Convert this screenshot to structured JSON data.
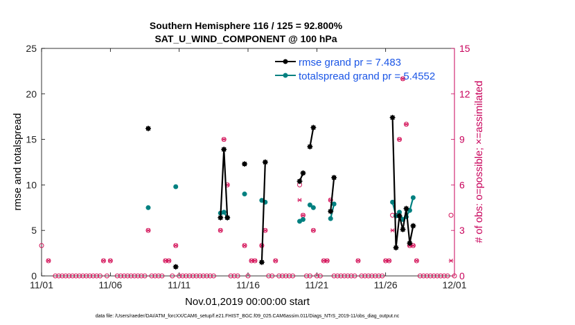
{
  "chart_data": {
    "type": "line",
    "title": "Southern Hemisphere 116 / 125 = 92.800%",
    "subtitle": "SAT_U_WIND_COMPONENT @ 100 hPa",
    "xlabel": "Nov.01,2019 00:00:00 start",
    "ylabel": "rmse and totalspread",
    "y2label": "# of obs: o=possible; ×=assimilated",
    "footnote": "data file: /Users/raeder/DAI/ATM_forcXX/CAM6_setup/f.e21.FHIST_BGC.f09_025.CAM6assim.011/Diags_NTrS_2019-11/obs_diag_output.nc",
    "xlim": [
      1,
      31
    ],
    "ylim": [
      0,
      25
    ],
    "y2lim": [
      0,
      15
    ],
    "xticks": [
      {
        "day": 1,
        "label": "11/01"
      },
      {
        "day": 6,
        "label": "11/06"
      },
      {
        "day": 11,
        "label": "11/11"
      },
      {
        "day": 16,
        "label": "11/16"
      },
      {
        "day": 21,
        "label": "11/21"
      },
      {
        "day": 26,
        "label": "11/26"
      },
      {
        "day": 31,
        "label": "12/01"
      }
    ],
    "yticks": [
      "0",
      "5",
      "10",
      "15",
      "20",
      "25"
    ],
    "y2ticks": [
      "0",
      "3",
      "6",
      "9",
      "12",
      "15"
    ],
    "legend": {
      "position": "top-right",
      "entries": [
        "rmse grand pr = 7.483",
        "totalspread grand pr = 5.4552"
      ]
    },
    "series": [
      {
        "name": "rmse",
        "color": "#000000",
        "segments": [
          [
            [
              8.75,
              16.2
            ]
          ],
          [
            [
              10.75,
              1.0
            ]
          ],
          [
            [
              14.0,
              6.4
            ],
            [
              14.25,
              13.9
            ],
            [
              14.5,
              6.4
            ]
          ],
          [
            [
              15.75,
              12.3
            ]
          ],
          [
            [
              17.0,
              1.5
            ],
            [
              17.25,
              12.5
            ]
          ],
          [
            [
              19.75,
              10.4
            ],
            [
              20.0,
              11.3
            ]
          ],
          [
            [
              20.5,
              14.2
            ],
            [
              20.75,
              16.3
            ]
          ],
          [
            [
              22.0,
              7.1
            ],
            [
              22.25,
              10.8
            ]
          ],
          [
            [
              26.5,
              17.4
            ],
            [
              26.75,
              3.1
            ],
            [
              27.0,
              6.6
            ],
            [
              27.25,
              5.1
            ],
            [
              27.5,
              7.4
            ],
            [
              27.75,
              3.6
            ],
            [
              28.0,
              5.5
            ]
          ]
        ]
      },
      {
        "name": "totalspread",
        "color": "#008080",
        "segments": [
          [
            [
              8.75,
              7.5
            ]
          ],
          [
            [
              10.75,
              9.8
            ]
          ],
          [
            [
              14.0,
              6.9
            ],
            [
              14.25,
              7.0
            ],
            [
              14.5,
              6.4
            ]
          ],
          [
            [
              15.75,
              9.0
            ]
          ],
          [
            [
              17.0,
              8.3
            ],
            [
              17.25,
              8.1
            ]
          ],
          [
            [
              19.75,
              6.0
            ],
            [
              20.0,
              6.2
            ]
          ],
          [
            [
              20.5,
              7.8
            ],
            [
              20.75,
              7.5
            ]
          ],
          [
            [
              22.0,
              6.3
            ],
            [
              22.25,
              7.9
            ]
          ],
          [
            [
              26.5,
              8.1
            ],
            [
              26.75,
              6.6
            ],
            [
              27.0,
              7.0
            ],
            [
              27.25,
              6.2
            ],
            [
              27.5,
              6.5
            ],
            [
              27.75,
              7.2
            ],
            [
              28.0,
              8.6
            ]
          ]
        ]
      }
    ],
    "obs_possible": [
      [
        1.0,
        2
      ],
      [
        1.5,
        1
      ],
      [
        2.0,
        0
      ],
      [
        2.25,
        0
      ],
      [
        2.5,
        0
      ],
      [
        2.75,
        0
      ],
      [
        3.0,
        0
      ],
      [
        3.25,
        0
      ],
      [
        3.5,
        0
      ],
      [
        3.75,
        0
      ],
      [
        4.0,
        0
      ],
      [
        4.25,
        0
      ],
      [
        4.5,
        0
      ],
      [
        4.75,
        0
      ],
      [
        5.0,
        0
      ],
      [
        5.25,
        0
      ],
      [
        5.5,
        1
      ],
      [
        5.75,
        0
      ],
      [
        6.0,
        1
      ],
      [
        6.5,
        0
      ],
      [
        6.75,
        0
      ],
      [
        7.0,
        0
      ],
      [
        7.25,
        0
      ],
      [
        7.5,
        0
      ],
      [
        7.75,
        0
      ],
      [
        8.0,
        0
      ],
      [
        8.25,
        0
      ],
      [
        8.5,
        0
      ],
      [
        8.75,
        3
      ],
      [
        9.0,
        0
      ],
      [
        9.25,
        0
      ],
      [
        9.5,
        0
      ],
      [
        9.75,
        0
      ],
      [
        10.0,
        1
      ],
      [
        10.25,
        1
      ],
      [
        10.5,
        0
      ],
      [
        10.75,
        2
      ],
      [
        11.0,
        0
      ],
      [
        11.25,
        0
      ],
      [
        11.5,
        0
      ],
      [
        11.75,
        0
      ],
      [
        12.0,
        0
      ],
      [
        12.25,
        0
      ],
      [
        12.5,
        0
      ],
      [
        12.75,
        0
      ],
      [
        13.0,
        0
      ],
      [
        13.25,
        0
      ],
      [
        13.5,
        0
      ],
      [
        14.0,
        3
      ],
      [
        14.25,
        9
      ],
      [
        14.5,
        6
      ],
      [
        14.75,
        0
      ],
      [
        15.0,
        0
      ],
      [
        15.25,
        0
      ],
      [
        15.75,
        2
      ],
      [
        16.0,
        0
      ],
      [
        16.25,
        1
      ],
      [
        16.5,
        1
      ],
      [
        17.0,
        2
      ],
      [
        17.25,
        3
      ],
      [
        17.5,
        0
      ],
      [
        17.75,
        0
      ],
      [
        18.0,
        1
      ],
      [
        18.25,
        0
      ],
      [
        18.5,
        0
      ],
      [
        18.75,
        0
      ],
      [
        19.0,
        0
      ],
      [
        19.25,
        0
      ],
      [
        19.75,
        6
      ],
      [
        20.0,
        4
      ],
      [
        20.25,
        0
      ],
      [
        20.5,
        0
      ],
      [
        20.75,
        3
      ],
      [
        21.0,
        0
      ],
      [
        21.25,
        0
      ],
      [
        21.5,
        1
      ],
      [
        21.75,
        1
      ],
      [
        22.0,
        5
      ],
      [
        22.25,
        0
      ],
      [
        22.5,
        0
      ],
      [
        22.75,
        0
      ],
      [
        23.0,
        0
      ],
      [
        23.25,
        0
      ],
      [
        23.5,
        0
      ],
      [
        23.75,
        0
      ],
      [
        24.0,
        1
      ],
      [
        24.25,
        0
      ],
      [
        24.5,
        0
      ],
      [
        24.75,
        0
      ],
      [
        25.0,
        0
      ],
      [
        25.25,
        0
      ],
      [
        25.5,
        0
      ],
      [
        25.75,
        0
      ],
      [
        26.0,
        1
      ],
      [
        26.25,
        1
      ],
      [
        26.5,
        4
      ],
      [
        26.75,
        4
      ],
      [
        27.0,
        9
      ],
      [
        27.25,
        13
      ],
      [
        27.5,
        10
      ],
      [
        27.75,
        2
      ],
      [
        28.0,
        2
      ],
      [
        28.25,
        1
      ],
      [
        28.5,
        0
      ],
      [
        28.75,
        0
      ],
      [
        29.0,
        0
      ],
      [
        29.25,
        0
      ],
      [
        29.5,
        0
      ],
      [
        29.75,
        0
      ],
      [
        30.0,
        0
      ],
      [
        30.25,
        0
      ],
      [
        30.5,
        0
      ],
      [
        30.75,
        4
      ],
      [
        31.0,
        0
      ]
    ],
    "obs_assimilated": [
      [
        1.5,
        1
      ],
      [
        5.5,
        1
      ],
      [
        6.0,
        1
      ],
      [
        8.75,
        3
      ],
      [
        10.0,
        1
      ],
      [
        10.25,
        1
      ],
      [
        10.75,
        2
      ],
      [
        14.0,
        3
      ],
      [
        14.25,
        9
      ],
      [
        14.5,
        6
      ],
      [
        15.75,
        2
      ],
      [
        16.25,
        1
      ],
      [
        16.5,
        1
      ],
      [
        17.0,
        2
      ],
      [
        17.25,
        3
      ],
      [
        18.0,
        1
      ],
      [
        19.75,
        5
      ],
      [
        20.0,
        4
      ],
      [
        20.75,
        3
      ],
      [
        21.5,
        1
      ],
      [
        21.75,
        1
      ],
      [
        22.0,
        5
      ],
      [
        24.0,
        1
      ],
      [
        26.0,
        1
      ],
      [
        26.25,
        1
      ],
      [
        26.5,
        3
      ],
      [
        26.75,
        4
      ],
      [
        27.0,
        9
      ],
      [
        27.25,
        13
      ],
      [
        27.5,
        10
      ],
      [
        27.75,
        2
      ],
      [
        28.0,
        2
      ],
      [
        28.25,
        1
      ],
      [
        30.75,
        1
      ]
    ]
  },
  "colors": {
    "rmse": "#000000",
    "totalspread": "#008080",
    "obs": "#d4145a",
    "legend_text": "#1a55e6",
    "right_axis": "#c8005a"
  }
}
